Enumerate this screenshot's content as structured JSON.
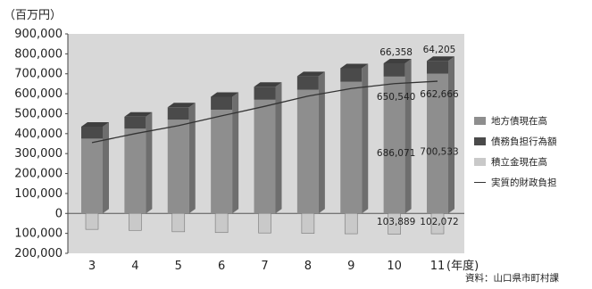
{
  "chart_data": {
    "type": "bar",
    "unit_label": "（百万円）",
    "categories": [
      "3",
      "4",
      "5",
      "6",
      "7",
      "8",
      "9",
      "10",
      "11"
    ],
    "x_suffix": "(年度)",
    "ylim": [
      -200000,
      900000
    ],
    "yticks": [
      {
        "value": 900000,
        "label": "900,000"
      },
      {
        "value": 800000,
        "label": "800,000"
      },
      {
        "value": 700000,
        "label": "700,000"
      },
      {
        "value": 600000,
        "label": "600,000"
      },
      {
        "value": 500000,
        "label": "500,000"
      },
      {
        "value": 400000,
        "label": "400,000"
      },
      {
        "value": 300000,
        "label": "300,000"
      },
      {
        "value": 200000,
        "label": "200,000"
      },
      {
        "value": 100000,
        "label": "100,000"
      },
      {
        "value": 0,
        "label": "0"
      },
      {
        "value": -100000,
        "label": "100,000"
      },
      {
        "value": -200000,
        "label": "200,000"
      }
    ],
    "grid": false,
    "legend_position": "right",
    "series": [
      {
        "name": "地方債現在高",
        "color": "#8e8e8e",
        "values": [
          375000,
          425000,
          470000,
          520000,
          570000,
          620000,
          660000,
          686071,
          700533
        ]
      },
      {
        "name": "債務負担行為額",
        "color": "#4a4a4a",
        "values": [
          60000,
          60000,
          62000,
          65000,
          65000,
          68000,
          68000,
          66358,
          64205
        ]
      },
      {
        "name": "積立金現在高",
        "color": "#c9c9c9",
        "values": [
          -80000,
          -85000,
          -92000,
          -96000,
          -98000,
          -100000,
          -102000,
          -103889,
          -102072
        ]
      },
      {
        "name": "実質的財政負担",
        "color": "#333333",
        "line": true,
        "values": [
          355000,
          400000,
          440000,
          489000,
          537000,
          588000,
          626000,
          650540,
          662666
        ]
      }
    ],
    "data_labels": [
      {
        "series": 0,
        "index": 7,
        "text": "686,071"
      },
      {
        "series": 0,
        "index": 8,
        "text": "700,533"
      },
      {
        "series": 1,
        "index": 7,
        "text": "66,358"
      },
      {
        "series": 1,
        "index": 8,
        "text": "64,205"
      },
      {
        "series": 2,
        "index": 7,
        "text": "103,889"
      },
      {
        "series": 2,
        "index": 8,
        "text": "102,072"
      },
      {
        "series": 3,
        "index": 7,
        "text": "650,540"
      },
      {
        "series": 3,
        "index": 8,
        "text": "662,666"
      }
    ]
  },
  "source_note": "資料：山口県市町村課",
  "colors": {
    "plot_background": "#d8d8d8",
    "bar_front": "#8e8e8e",
    "bar_top": "#3f3f3f"
  }
}
